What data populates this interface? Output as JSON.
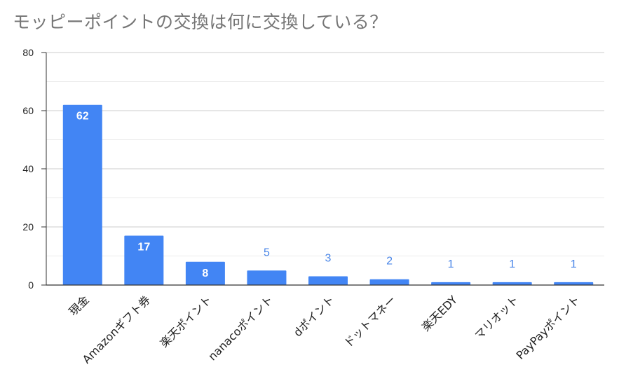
{
  "chart_data": {
    "type": "bar",
    "title": "モッピーポイントの交換は何に交換している？",
    "categories": [
      "現金",
      "Amazonギフト券",
      "楽天ポイント",
      "nanacoポイント",
      "dポイント",
      "ドットマネー",
      "楽天EDY",
      "マリオット",
      "PayPayポイント"
    ],
    "values": [
      62,
      17,
      8,
      5,
      3,
      2,
      1,
      1,
      1
    ],
    "ylim": [
      0,
      80
    ],
    "yticks": [
      0,
      20,
      40,
      60,
      80
    ],
    "grid": true,
    "bar_color": "#4285f4",
    "xlabel": "",
    "ylabel": ""
  }
}
